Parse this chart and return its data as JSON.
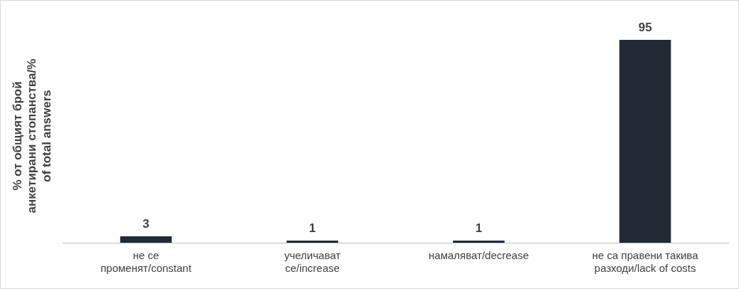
{
  "chart_data": {
    "type": "bar",
    "ylabel": "% от общият брой анкетирани стопанства/% of total answers",
    "categories": [
      "не се променят/constant",
      "учеличават се/increase",
      "намаляват/decrease",
      "не са правени такива разходи/lack of costs"
    ],
    "values": [
      3,
      1,
      1,
      95
    ],
    "color": "#222a35",
    "data_labels": true,
    "grid": false,
    "legend": false
  }
}
